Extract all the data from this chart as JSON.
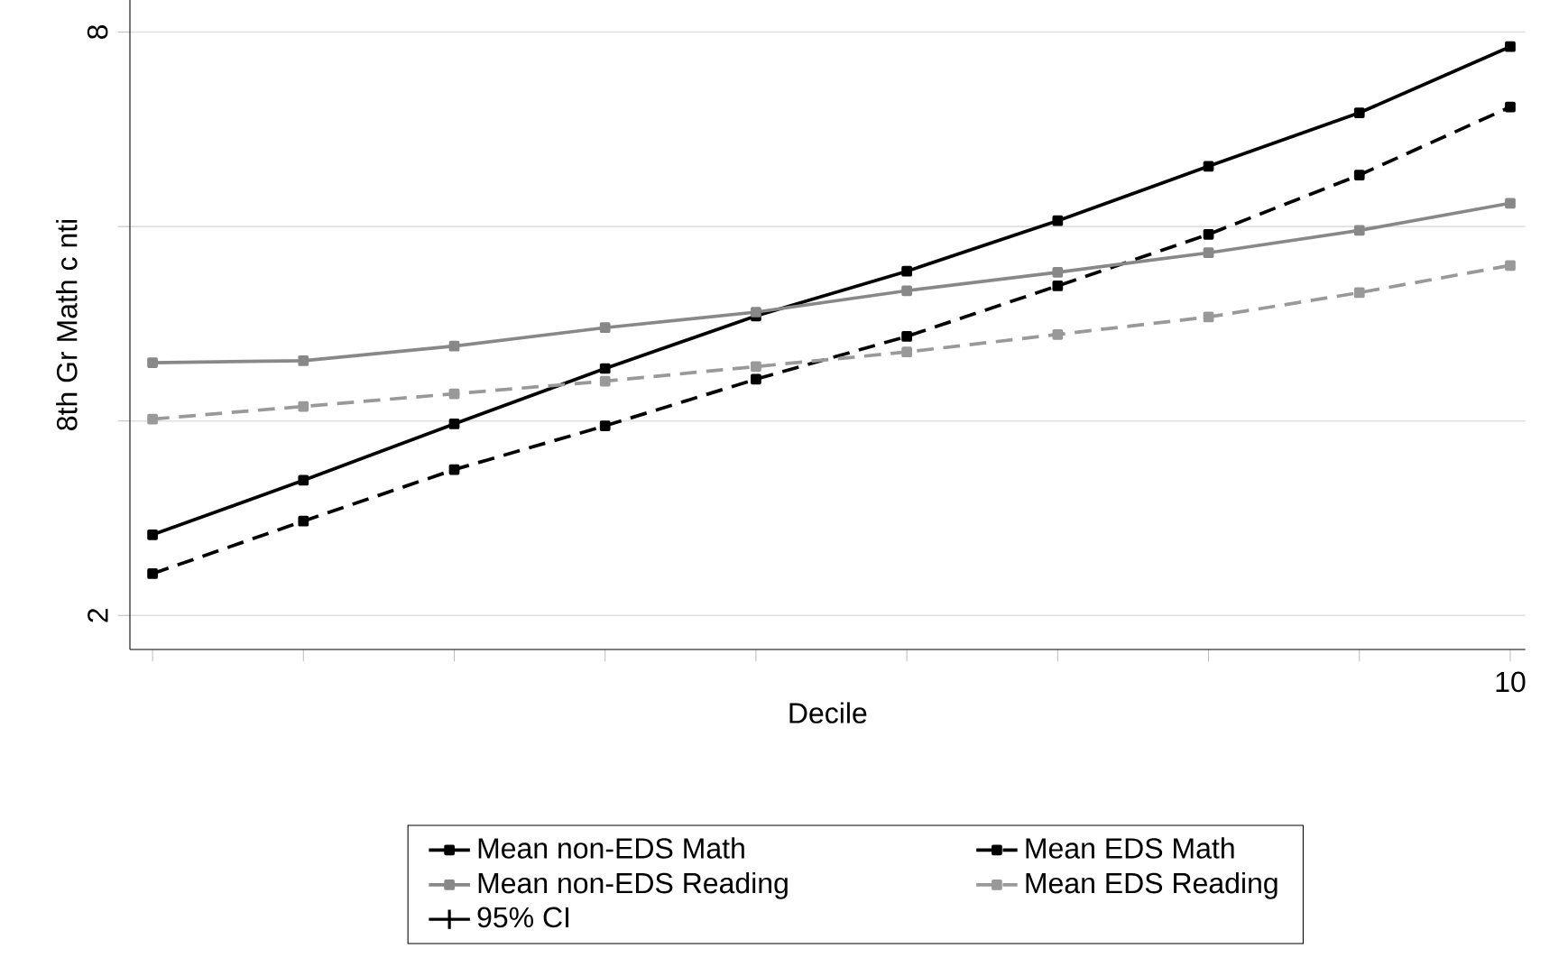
{
  "chart_data": {
    "type": "line",
    "xlabel": "Decile",
    "ylabel": "8th Gr Math c nti",
    "categories": [
      null,
      null,
      null,
      null,
      null,
      null,
      null,
      null,
      null,
      "10"
    ],
    "series": [
      {
        "name": "Mean non-EDS Math",
        "color": "#000000",
        "line_style": "solid",
        "values": [
          2.83,
          3.39,
          3.97,
          4.54,
          5.08,
          5.54,
          6.06,
          6.62,
          7.17,
          7.85
        ]
      },
      {
        "name": "Mean EDS Math",
        "color": "#000000",
        "line_style": "dashed",
        "values": [
          2.43,
          2.97,
          3.5,
          3.95,
          4.43,
          4.87,
          5.39,
          5.92,
          6.53,
          7.23
        ]
      },
      {
        "name": "Mean non-EDS Reading",
        "color": "#888888",
        "line_style": "solid",
        "values": [
          4.6,
          4.62,
          4.77,
          4.96,
          5.12,
          5.34,
          5.53,
          5.73,
          5.96,
          6.24
        ]
      },
      {
        "name": "Mean EDS Reading",
        "color": "#999999",
        "line_style": "dashed",
        "values": [
          4.02,
          4.15,
          4.28,
          4.41,
          4.56,
          4.71,
          4.89,
          5.07,
          5.32,
          5.6
        ]
      },
      {
        "name": "95% CI",
        "color": "#000000",
        "line_style": "solid",
        "values": [
          null,
          null,
          null,
          null,
          null,
          null,
          null,
          null,
          null,
          null
        ]
      }
    ],
    "ylim": [
      1.65,
      8.33
    ],
    "yticks": [
      2,
      {
        "value": 4,
        "label": null
      },
      {
        "value": 6,
        "label": null
      },
      8
    ],
    "grid": "y",
    "legend": "bottom",
    "marker": "square"
  }
}
